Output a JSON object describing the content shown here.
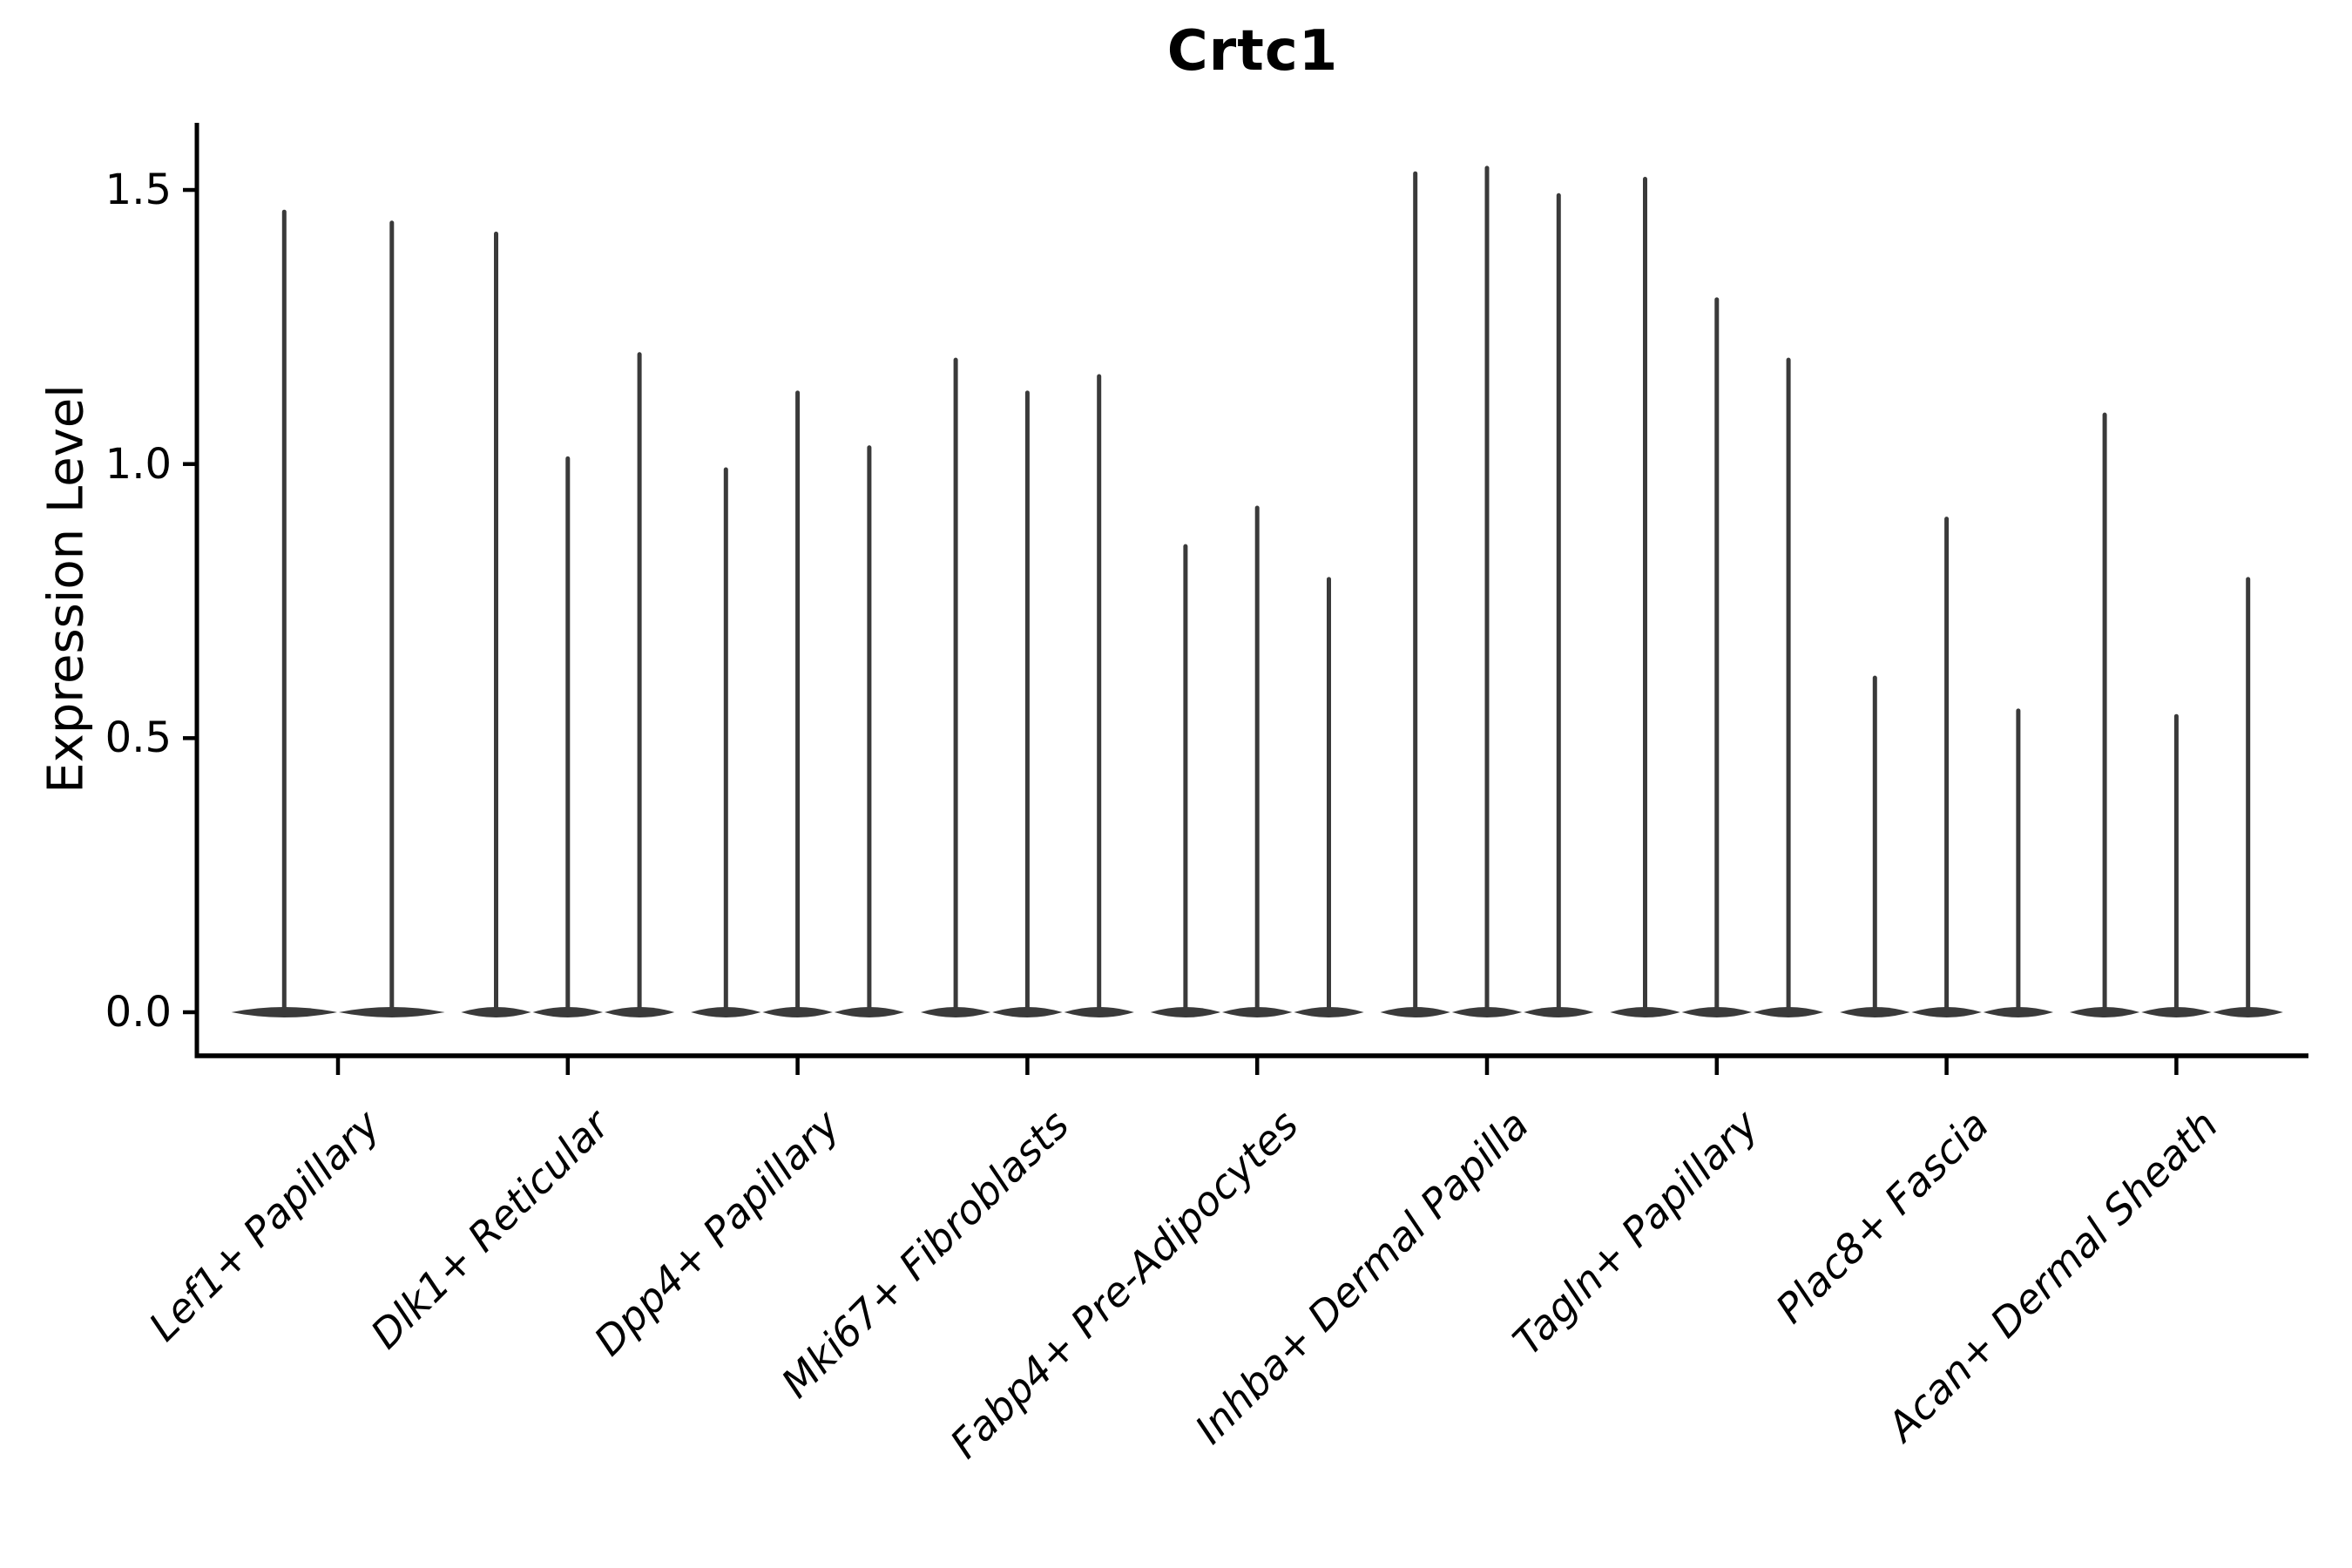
{
  "chart_data": {
    "type": "violin",
    "title": "Crtc1",
    "ylabel": "Expression Level",
    "xlabel": "",
    "y_ticks": [
      {
        "label": "0.0",
        "value": 0.0
      },
      {
        "label": "0.5",
        "value": 0.5
      },
      {
        "label": "1.0",
        "value": 1.0
      },
      {
        "label": "1.5",
        "value": 1.5
      }
    ],
    "ylim": [
      -0.08,
      1.62
    ],
    "grid": false,
    "legend": "none",
    "x_tick_rotation": 45,
    "x_tick_style": "italic",
    "groups": [
      {
        "category": "Lef1+ Papillary",
        "violin_maxima": [
          1.46,
          1.44
        ]
      },
      {
        "category": "Dlk1+ Reticular",
        "violin_maxima": [
          1.42,
          1.01,
          1.2
        ]
      },
      {
        "category": "Dpp4+ Papillary",
        "violin_maxima": [
          0.99,
          1.13,
          1.03
        ]
      },
      {
        "category": "Mki67+ Fibroblasts",
        "violin_maxima": [
          1.19,
          1.13,
          1.16
        ]
      },
      {
        "category": "Fabp4+ Pre-Adipocytes",
        "violin_maxima": [
          0.85,
          0.92,
          0.79
        ]
      },
      {
        "category": "Inhba+ Dermal Papilla",
        "violin_maxima": [
          1.53,
          1.54,
          1.49
        ]
      },
      {
        "category": "Tagln+ Papillary",
        "violin_maxima": [
          1.52,
          1.3,
          1.19
        ]
      },
      {
        "category": "Plac8+ Fascia",
        "violin_maxima": [
          0.61,
          0.9,
          0.55
        ]
      },
      {
        "category": "Acan+ Dermal Sheath",
        "violin_maxima": [
          1.09,
          0.54,
          0.79
        ]
      }
    ],
    "violin_shape_note": "each violin is a flat lens at 0 expression with a thin vertical spike up to its maximum",
    "colors": {
      "violin": "#3a3a3a",
      "axis": "#000000",
      "text": "#000000",
      "background": "#ffffff"
    }
  }
}
